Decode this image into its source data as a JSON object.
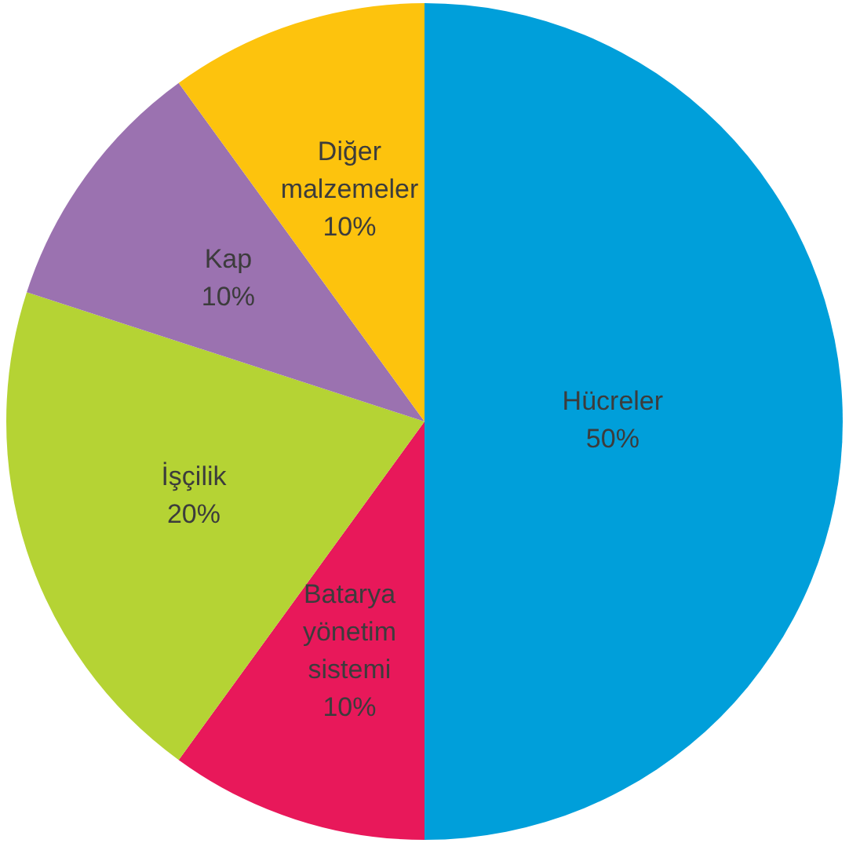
{
  "chart_data": {
    "type": "pie",
    "categories": [
      "Hücreler",
      "Batarya yönetim sistemi",
      "İşçilik",
      "Kap",
      "Diğer malzemeler"
    ],
    "values": [
      50,
      10,
      20,
      10,
      10
    ],
    "colors": [
      "#009fda",
      "#e8185a",
      "#b5d334",
      "#9b72b0",
      "#fdc30d"
    ],
    "value_labels": [
      "50%",
      "10%",
      "20%",
      "10%",
      "10%"
    ],
    "legend": false
  }
}
